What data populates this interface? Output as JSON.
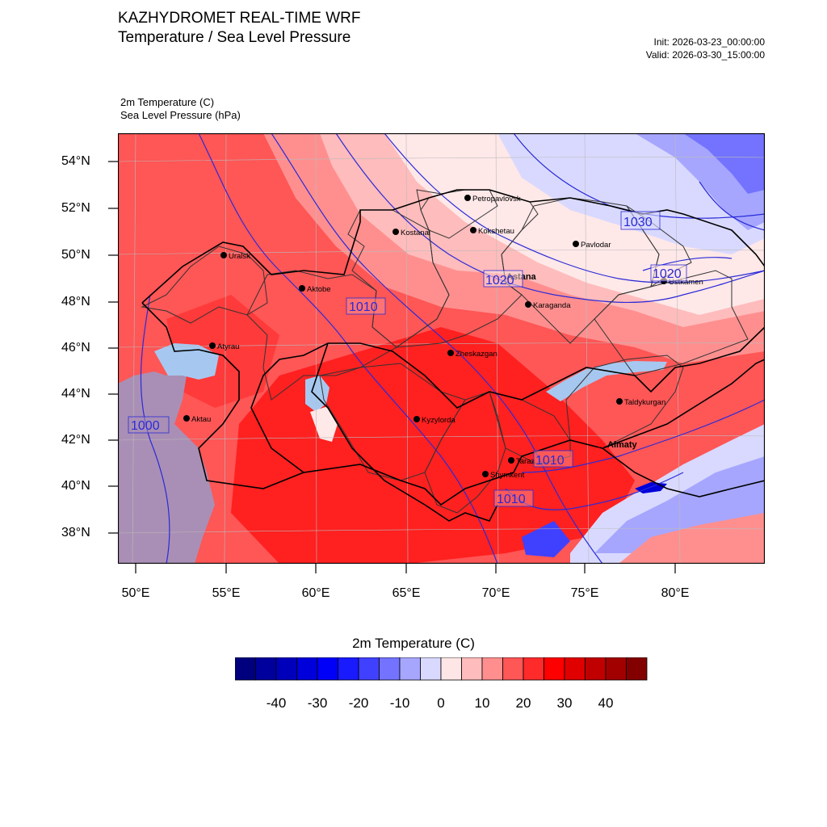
{
  "header": {
    "title": "KAZHYDROMET REAL-TIME WRF",
    "subtitle": "Temperature / Sea Level Pressure",
    "init": "Init: 2026-03-23_00:00:00",
    "valid": "Valid: 2026-03-30_15:00:00"
  },
  "fields": {
    "temperature": "2m Temperature   (C)",
    "pressure": "Sea Level Pressure   (hPa)"
  },
  "map": {
    "lat_labels": [
      "54°N",
      "52°N",
      "50°N",
      "48°N",
      "46°N",
      "44°N",
      "42°N",
      "40°N",
      "38°N"
    ],
    "lon_labels": [
      "50°E",
      "55°E",
      "60°E",
      "65°E",
      "70°E",
      "75°E",
      "80°E"
    ],
    "cities": {
      "petropavlovsk": "Petropavlovsk",
      "kostanai": "Kostanai",
      "kokshetau": "Kokshetau",
      "pavlodar": "Pavlodar",
      "uralsk": "Uralsk",
      "astana": "Astana",
      "ustkamen": "Ustkamen",
      "aktobe": "Aktobe",
      "karaganda": "Karaganda",
      "atyrau": "Atyrau",
      "zheskazgan": "Zheskazgan",
      "taldykurgan": "Taldykurgan",
      "aktau": "Aktau",
      "kyzylorda": "Kyzylorda",
      "almaty": "Almaty",
      "taraz": "Taraz",
      "shymkent": "Shymkent"
    },
    "isobar_labels": {
      "p1030": "1030",
      "p1020_east": "1020",
      "p1020_center": "1020",
      "p1010_west": "1010",
      "p1010_south": "1010",
      "p1010_southeast": "1010",
      "p1000": "1000"
    },
    "colors": {
      "isobar": "#2a2ad8",
      "caspian": "#a98fb5",
      "hot": "#ff2020",
      "warm": "#ff5656",
      "mild": "#ff8f8f",
      "cool": "#ffbcbc",
      "near_zero": "#ffe8e8"
    }
  },
  "colorbar": {
    "title": "2m Temperature  (C)",
    "ticks": [
      "-40",
      "-30",
      "-20",
      "-10",
      "0",
      "10",
      "20",
      "30",
      "40"
    ],
    "colors": [
      "#00007f",
      "#00009c",
      "#0000bb",
      "#0000da",
      "#0000f8",
      "#1a1aff",
      "#4040ff",
      "#7373ff",
      "#a6a6ff",
      "#d9d9ff",
      "#ffe6e6",
      "#ffbcbc",
      "#ff8f8f",
      "#ff5656",
      "#ff2a2a",
      "#ff0000",
      "#e00000",
      "#c00000",
      "#a20000",
      "#830000"
    ]
  }
}
